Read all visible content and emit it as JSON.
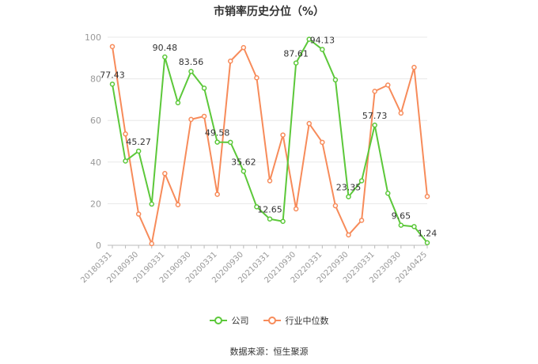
{
  "chart_data": {
    "type": "line",
    "title": "市销率历史分位（%）",
    "ylim": [
      0,
      100
    ],
    "yticks": [
      0,
      20,
      40,
      60,
      80,
      100
    ],
    "grid": true,
    "legend_position": "bottom",
    "categories": [
      "20180331",
      "",
      "20180930",
      "",
      "20190331",
      "",
      "20190930",
      "",
      "20200331",
      "",
      "20200930",
      "",
      "20210331",
      "",
      "20210930",
      "",
      "20220331",
      "",
      "20220930",
      "",
      "20230331",
      "",
      "20230930",
      "",
      "20240425"
    ],
    "series": [
      {
        "name": "公司",
        "color": "#5cc83a",
        "values": [
          77.43,
          40.5,
          45.27,
          19.8,
          90.48,
          68.5,
          83.56,
          75.5,
          49.58,
          49.5,
          35.62,
          18.5,
          12.65,
          11.5,
          87.61,
          99.0,
          94.13,
          79.5,
          23.35,
          31.0,
          57.73,
          25.0,
          9.65,
          9.0,
          1.24
        ],
        "labels": [
          77.43,
          null,
          45.27,
          null,
          90.48,
          null,
          83.56,
          null,
          49.58,
          null,
          35.62,
          null,
          12.65,
          null,
          87.61,
          null,
          94.13,
          null,
          23.35,
          null,
          57.73,
          null,
          9.65,
          null,
          1.24
        ]
      },
      {
        "name": "行业中位数",
        "color": "#f78b5a",
        "values": [
          95.5,
          53.5,
          15.0,
          0.8,
          34.5,
          19.5,
          60.5,
          62.0,
          24.5,
          88.5,
          95.0,
          80.5,
          31.0,
          53.0,
          17.5,
          58.5,
          49.5,
          19.0,
          5.0,
          12.0,
          74.0,
          77.0,
          63.5,
          85.5,
          23.5
        ],
        "labels": []
      }
    ]
  },
  "legend": {
    "company": "公司",
    "industry": "行业中位数"
  },
  "source": "数据来源：恒生聚源"
}
